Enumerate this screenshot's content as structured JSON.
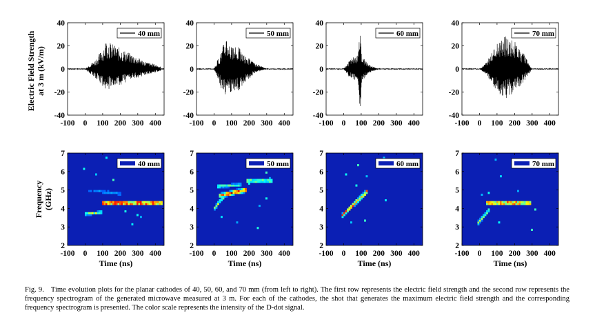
{
  "figure": {
    "label": "Fig. 9.",
    "caption": "Time evolution plots for the planar cathodes of 40, 50, 60, and 70 mm (from left to right). The first row represents the electric field strength and the second row represents the frequency spectrogram of the generated microwave measured at 3 m. For each of the cathodes, the shot that generates the maximum electric field strength and the corresponding frequency spectrogram is presented. The color scale represents the intensity of the D-dot signal."
  },
  "colors": {
    "background": "#0b1fb4",
    "line": "#000000"
  },
  "chart_data": [
    {
      "type": "line",
      "panel": "field-40",
      "legend": "40 mm",
      "ylabel": "Electric Field Strength at 3 m (kV/m)",
      "xlim": [
        -100,
        450
      ],
      "ylim": [
        -40,
        40
      ],
      "xticks": [
        "-100",
        "0",
        "100",
        "200",
        "300",
        "400"
      ],
      "yticks": [
        "-40",
        "-20",
        "0",
        "20",
        "40"
      ],
      "envelope_x": [
        0,
        20,
        60,
        100,
        120,
        150,
        200,
        250,
        300,
        350,
        400,
        430
      ],
      "envelope_max": [
        0,
        3,
        8,
        18,
        26,
        22,
        18,
        14,
        10,
        6,
        4,
        2
      ],
      "envelope_min": [
        0,
        -3,
        -8,
        -15,
        -19,
        -16,
        -14,
        -10,
        -8,
        -5,
        -3,
        -2
      ]
    },
    {
      "type": "line",
      "panel": "field-50",
      "legend": "50 mm",
      "xlim": [
        -100,
        450
      ],
      "ylim": [
        -40,
        40
      ],
      "xticks": [
        "-100",
        "0",
        "100",
        "200",
        "300",
        "400"
      ],
      "yticks": [
        "-40",
        "-20",
        "0",
        "20",
        "40"
      ],
      "envelope_x": [
        0,
        20,
        40,
        70,
        90,
        110,
        140,
        170,
        200,
        230,
        260,
        300
      ],
      "envelope_max": [
        0,
        8,
        15,
        31,
        22,
        18,
        20,
        12,
        10,
        5,
        3,
        0
      ],
      "envelope_min": [
        0,
        -8,
        -17,
        -29,
        -22,
        -18,
        -20,
        -12,
        -9,
        -4,
        -2,
        0
      ]
    },
    {
      "type": "line",
      "panel": "field-60",
      "legend": "60 mm",
      "xlim": [
        -100,
        450
      ],
      "ylim": [
        -40,
        40
      ],
      "xticks": [
        "-100",
        "0",
        "100",
        "200",
        "300",
        "400"
      ],
      "yticks": [
        "-40",
        "-20",
        "0",
        "20",
        "40"
      ],
      "envelope_x": [
        0,
        20,
        50,
        80,
        95,
        105,
        120,
        140,
        170,
        200
      ],
      "envelope_max": [
        0,
        5,
        10,
        12,
        38,
        12,
        8,
        4,
        2,
        0
      ],
      "envelope_min": [
        0,
        -5,
        -10,
        -14,
        -40,
        -12,
        -8,
        -4,
        -2,
        0
      ]
    },
    {
      "type": "line",
      "panel": "field-70",
      "legend": "70 mm",
      "xlim": [
        -100,
        450
      ],
      "ylim": [
        -40,
        40
      ],
      "xticks": [
        "-100",
        "0",
        "100",
        "200",
        "300",
        "400"
      ],
      "yticks": [
        "-40",
        "-20",
        "0",
        "20",
        "40"
      ],
      "envelope_x": [
        0,
        30,
        60,
        100,
        150,
        200,
        250,
        280,
        300
      ],
      "envelope_max": [
        0,
        4,
        12,
        24,
        30,
        24,
        14,
        5,
        0
      ],
      "envelope_min": [
        0,
        -4,
        -10,
        -20,
        -26,
        -20,
        -12,
        -5,
        0
      ]
    },
    {
      "type": "heatmap",
      "panel": "spec-40",
      "legend": "40 mm",
      "ylabel": "Frequency (GHz)",
      "xlabel": "Time (ns)",
      "xlim": [
        -100,
        450
      ],
      "ylim": [
        2,
        7
      ],
      "xticks": [
        "-100",
        "0",
        "100",
        "200",
        "300",
        "400"
      ],
      "yticks": [
        "2",
        "3",
        "4",
        "5",
        "6",
        "7"
      ],
      "ridges": [
        {
          "t0": 100,
          "t1": 440,
          "f0": 4.3,
          "f1": 4.3,
          "i": 1.0,
          "w": 0.09
        },
        {
          "t0": -5,
          "t1": 100,
          "f0": 3.7,
          "f1": 3.8,
          "i": 0.55,
          "w": 0.07
        },
        {
          "t0": 20,
          "t1": 200,
          "f0": 5.0,
          "f1": 4.8,
          "i": 0.18,
          "w": 0.1
        }
      ]
    },
    {
      "type": "heatmap",
      "panel": "spec-50",
      "legend": "50 mm",
      "xlabel": "Time (ns)",
      "xlim": [
        -100,
        450
      ],
      "ylim": [
        2,
        7
      ],
      "xticks": [
        "-100",
        "0",
        "100",
        "200",
        "300",
        "400"
      ],
      "yticks": [
        "2",
        "3",
        "4",
        "5",
        "6",
        "7"
      ],
      "ridges": [
        {
          "t0": 0,
          "t1": 60,
          "f0": 4.0,
          "f1": 4.7,
          "i": 0.5,
          "w": 0.1
        },
        {
          "t0": 30,
          "t1": 180,
          "f0": 4.7,
          "f1": 5.0,
          "i": 0.9,
          "w": 0.1
        },
        {
          "t0": 180,
          "t1": 330,
          "f0": 5.5,
          "f1": 5.5,
          "i": 0.8,
          "w": 0.06
        },
        {
          "t0": 20,
          "t1": 160,
          "f0": 5.2,
          "f1": 5.3,
          "i": 0.4,
          "w": 0.08
        }
      ]
    },
    {
      "type": "heatmap",
      "panel": "spec-60",
      "legend": "60 mm",
      "xlabel": "Time (ns)",
      "xlim": [
        -100,
        450
      ],
      "ylim": [
        2,
        7
      ],
      "xticks": [
        "-100",
        "0",
        "100",
        "200",
        "300",
        "400"
      ],
      "yticks": [
        "2",
        "3",
        "4",
        "5",
        "6",
        "7"
      ],
      "ridges": [
        {
          "t0": -10,
          "t1": 140,
          "f0": 3.6,
          "f1": 5.0,
          "i": 0.8,
          "w": 0.1
        }
      ]
    },
    {
      "type": "heatmap",
      "panel": "spec-70",
      "legend": "70 mm",
      "xlabel": "Time (ns)",
      "xlim": [
        -100,
        450
      ],
      "ylim": [
        2,
        7
      ],
      "xticks": [
        "-100",
        "0",
        "100",
        "200",
        "300",
        "400"
      ],
      "yticks": [
        "2",
        "3",
        "4",
        "5",
        "6",
        "7"
      ],
      "ridges": [
        {
          "t0": 40,
          "t1": 290,
          "f0": 4.3,
          "f1": 4.3,
          "i": 1.0,
          "w": 0.08
        },
        {
          "t0": -10,
          "t1": 60,
          "f0": 3.2,
          "f1": 4.0,
          "i": 0.45,
          "w": 0.1
        }
      ]
    }
  ]
}
